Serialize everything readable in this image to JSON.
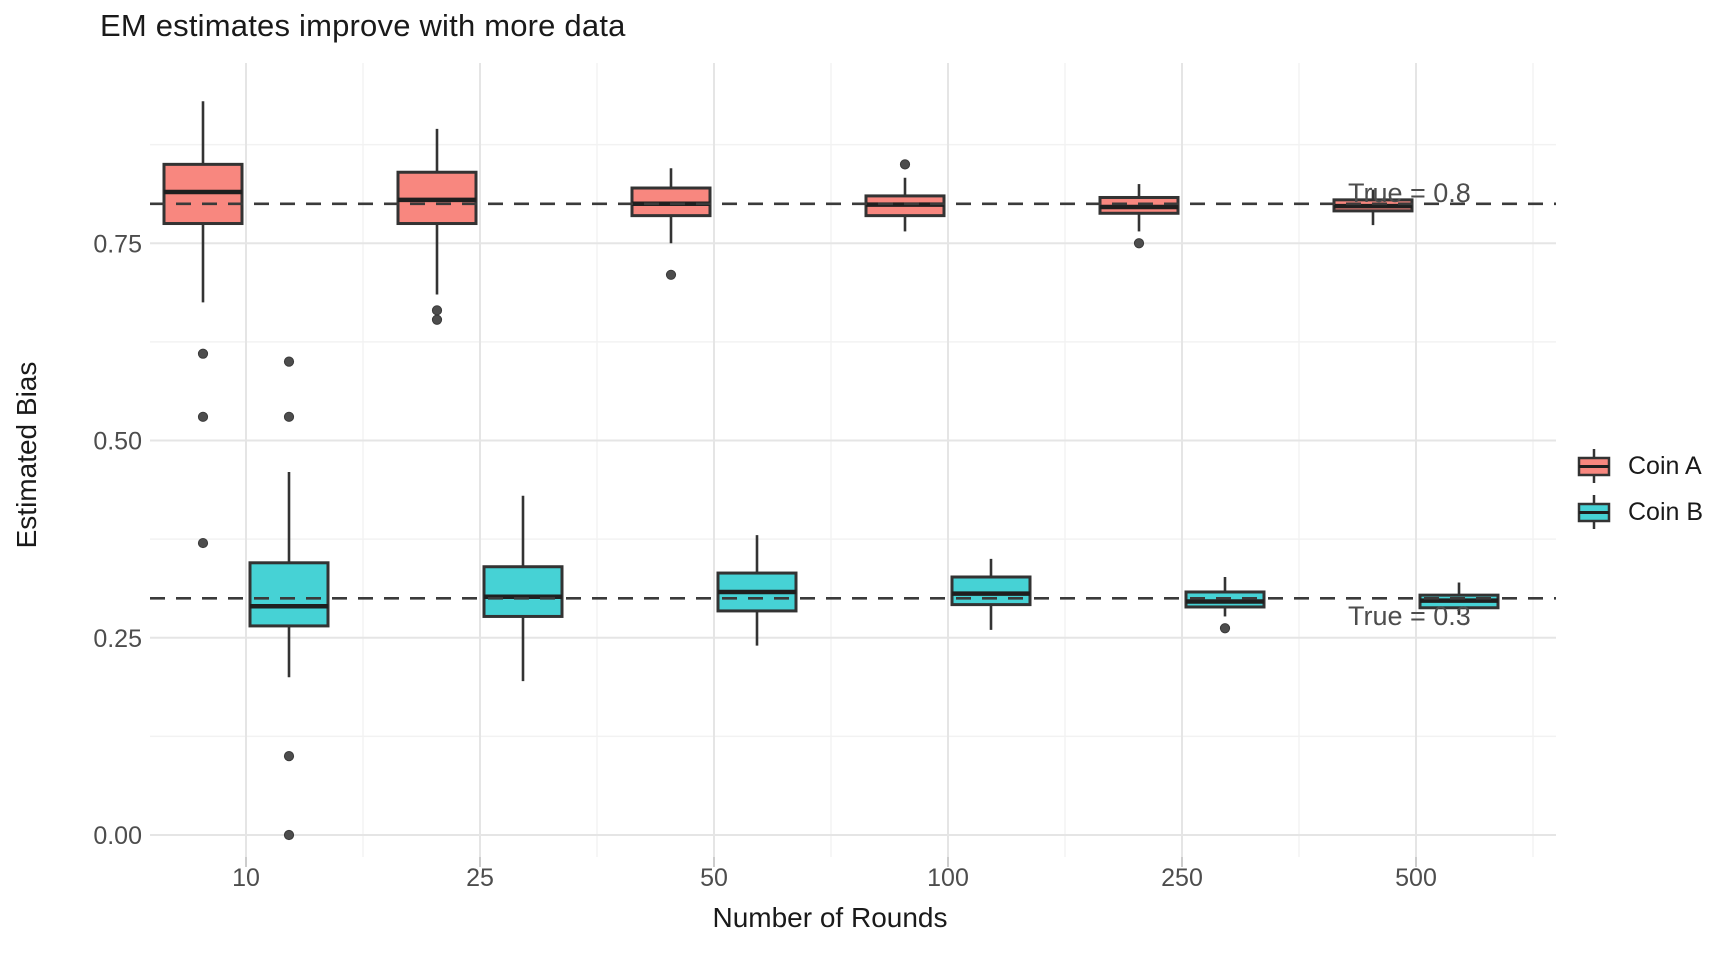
{
  "title": "EM estimates improve with more data",
  "axes": {
    "x": {
      "title": "Number of Rounds",
      "tick_labels": [
        "10",
        "25",
        "50",
        "100",
        "250",
        "500"
      ]
    },
    "y": {
      "title": "Estimated Bias",
      "tick_labels": [
        "0.00",
        "0.25",
        "0.50",
        "0.75"
      ],
      "tick_values": [
        0,
        0.25,
        0.5,
        0.75
      ]
    }
  },
  "legend": {
    "items": [
      {
        "label": "Coin A",
        "color": "#F8877F"
      },
      {
        "label": "Coin B",
        "color": "#46D2D5"
      }
    ]
  },
  "annotations": [
    {
      "text": "True = 0.8",
      "value": 0.8
    },
    {
      "text": "True = 0.3",
      "value": 0.3
    }
  ],
  "colors": {
    "coin_a_fill": "#F8877F",
    "coin_b_fill": "#46D2D5",
    "box_stroke": "#333333",
    "median_stroke": "#1f1f1f",
    "outlier": "#4d4d4d",
    "ref_line": "#3a3a3a",
    "grid_major": "#e5e5e5",
    "grid_minor": "#f2f2f2",
    "tick_text": "#4d4d4d",
    "tick_mark": "#cccccc"
  },
  "chart_data": {
    "type": "boxplot",
    "title": "EM estimates improve with more data",
    "xlabel": "Number of Rounds",
    "ylabel": "Estimated Bias",
    "categories": [
      "10",
      "25",
      "50",
      "100",
      "250",
      "500"
    ],
    "ylim": [
      -0.03,
      0.975
    ],
    "y_major_ticks": [
      0,
      0.25,
      0.5,
      0.75
    ],
    "y_minor_ticks": [
      0.125,
      0.375,
      0.625,
      0.875
    ],
    "grid": true,
    "legend_position": "right",
    "reference_lines": [
      {
        "value": 0.8,
        "label": "True = 0.8"
      },
      {
        "value": 0.3,
        "label": "True = 0.3"
      }
    ],
    "series": [
      {
        "name": "Coin A",
        "color": "#F8877F",
        "boxes": [
          {
            "category": "10",
            "whisker_low": 0.675,
            "q1": 0.775,
            "median": 0.815,
            "q3": 0.85,
            "whisker_high": 0.93,
            "outliers": [
              0.61,
              0.53,
              0.37
            ]
          },
          {
            "category": "25",
            "whisker_low": 0.685,
            "q1": 0.775,
            "median": 0.805,
            "q3": 0.84,
            "whisker_high": 0.895,
            "outliers": [
              0.665,
              0.653
            ]
          },
          {
            "category": "50",
            "whisker_low": 0.75,
            "q1": 0.785,
            "median": 0.8,
            "q3": 0.82,
            "whisker_high": 0.845,
            "outliers": [
              0.71
            ]
          },
          {
            "category": "100",
            "whisker_low": 0.765,
            "q1": 0.785,
            "median": 0.799,
            "q3": 0.81,
            "whisker_high": 0.833,
            "outliers": [
              0.85
            ]
          },
          {
            "category": "250",
            "whisker_low": 0.765,
            "q1": 0.788,
            "median": 0.796,
            "q3": 0.808,
            "whisker_high": 0.825,
            "outliers": [
              0.75
            ]
          },
          {
            "category": "500",
            "whisker_low": 0.773,
            "q1": 0.791,
            "median": 0.797,
            "q3": 0.805,
            "whisker_high": 0.818,
            "outliers": []
          }
        ]
      },
      {
        "name": "Coin B",
        "color": "#46D2D5",
        "boxes": [
          {
            "category": "10",
            "whisker_low": 0.2,
            "q1": 0.265,
            "median": 0.29,
            "q3": 0.345,
            "whisker_high": 0.46,
            "outliers": [
              0.6,
              0.53,
              0.1,
              0.0
            ]
          },
          {
            "category": "25",
            "whisker_low": 0.195,
            "q1": 0.277,
            "median": 0.302,
            "q3": 0.34,
            "whisker_high": 0.43,
            "outliers": []
          },
          {
            "category": "50",
            "whisker_low": 0.24,
            "q1": 0.284,
            "median": 0.308,
            "q3": 0.332,
            "whisker_high": 0.38,
            "outliers": []
          },
          {
            "category": "100",
            "whisker_low": 0.26,
            "q1": 0.292,
            "median": 0.306,
            "q3": 0.327,
            "whisker_high": 0.35,
            "outliers": []
          },
          {
            "category": "250",
            "whisker_low": 0.277,
            "q1": 0.289,
            "median": 0.296,
            "q3": 0.308,
            "whisker_high": 0.327,
            "outliers": [
              0.262
            ]
          },
          {
            "category": "500",
            "whisker_low": 0.279,
            "q1": 0.288,
            "median": 0.297,
            "q3": 0.304,
            "whisker_high": 0.32,
            "outliers": []
          }
        ]
      }
    ]
  }
}
